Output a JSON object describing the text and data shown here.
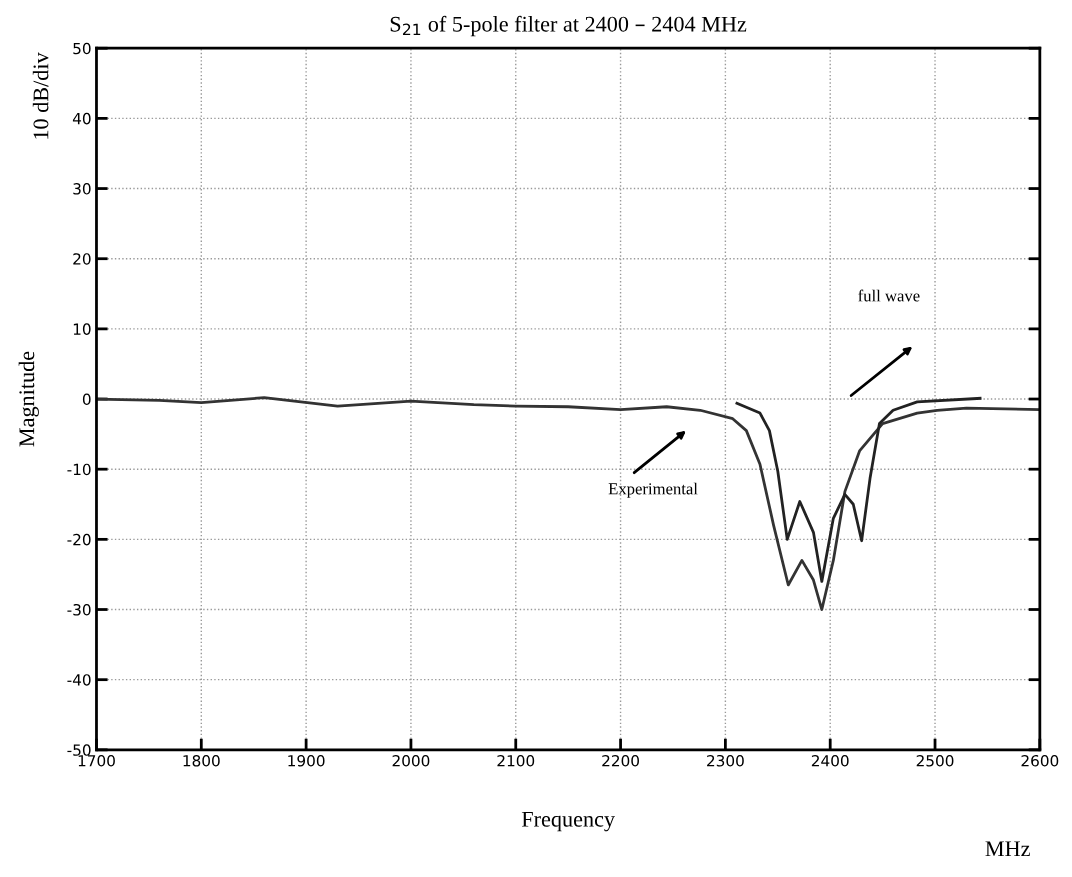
{
  "chart_data": {
    "type": "line",
    "title": "S$_{21}$ of 5-pole filter at 2400 – 2404 MHz",
    "xlabel": "Frequency",
    "ylabel": "Magnitude",
    "annotations": [
      "10 dB/div",
      "MHz",
      "Experimental",
      "full wave"
    ],
    "xlim": [
      1700,
      2600
    ],
    "xticks": [
      1700,
      1800,
      1900,
      2000,
      2100,
      2200,
      2300,
      2400,
      2500,
      2600
    ],
    "ylim": [
      -50,
      50
    ],
    "yticks": [
      -50,
      -40,
      -30,
      -20,
      -10,
      0,
      10,
      20,
      30,
      40,
      50
    ],
    "grid": true,
    "line_style": "solid",
    "marker": "none",
    "series": [
      {
        "color": "#333333",
        "x": [
          1700,
          1760,
          1800,
          1860,
          1930,
          2000,
          2060,
          2100,
          2150,
          2200,
          2244,
          2276,
          2307,
          2320,
          2333,
          2346,
          2360,
          2373,
          2384,
          2392,
          2403,
          2414,
          2428,
          2450,
          2483,
          2502,
          2530,
          2600
        ],
        "values": [
          0,
          -0.2,
          -0.5,
          0.2,
          -1,
          -0.3,
          -0.8,
          -1,
          -1.1,
          -1.5,
          -1.1,
          -1.6,
          -2.8,
          -4.5,
          -9.3,
          -18,
          -26.5,
          -23,
          -25.8,
          -30,
          -23,
          -13.2,
          -7.4,
          -3.5,
          -2,
          -1.6,
          -1.3,
          -1.5
        ]
      },
      {
        "color": "#222222",
        "x": [
          2311,
          2333,
          2342,
          2350,
          2359,
          2371,
          2384,
          2392,
          2403,
          2414,
          2422,
          2430,
          2438,
          2447,
          2460,
          2483,
          2543
        ],
        "values": [
          -0.6,
          -2,
          -4.5,
          -10.3,
          -20,
          -14.6,
          -19,
          -26,
          -17,
          -13.6,
          -15,
          -20.2,
          -11.3,
          -3.5,
          -1.6,
          -0.4,
          0.1
        ]
      }
    ]
  }
}
